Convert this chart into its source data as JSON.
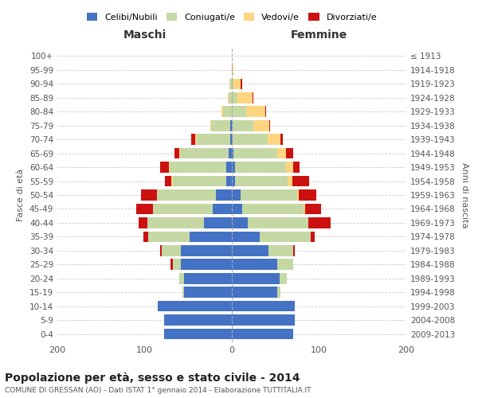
{
  "age_groups": [
    "0-4",
    "5-9",
    "10-14",
    "15-19",
    "20-24",
    "25-29",
    "30-34",
    "35-39",
    "40-44",
    "45-49",
    "50-54",
    "55-59",
    "60-64",
    "65-69",
    "70-74",
    "75-79",
    "80-84",
    "85-89",
    "90-94",
    "95-99",
    "100+"
  ],
  "birth_years": [
    "2009-2013",
    "2004-2008",
    "1999-2003",
    "1994-1998",
    "1989-1993",
    "1984-1988",
    "1979-1983",
    "1974-1978",
    "1969-1973",
    "1964-1968",
    "1959-1963",
    "1954-1958",
    "1949-1953",
    "1944-1948",
    "1939-1943",
    "1934-1938",
    "1929-1933",
    "1924-1928",
    "1919-1923",
    "1914-1918",
    "≤ 1913"
  ],
  "maschi": {
    "celibi": [
      78,
      78,
      85,
      55,
      55,
      58,
      58,
      48,
      32,
      22,
      18,
      6,
      6,
      4,
      2,
      2,
      0,
      0,
      0,
      0,
      0
    ],
    "coniugati": [
      0,
      0,
      0,
      2,
      5,
      10,
      22,
      48,
      65,
      68,
      68,
      62,
      65,
      55,
      38,
      22,
      10,
      4,
      2,
      0,
      0
    ],
    "vedovi": [
      0,
      0,
      0,
      0,
      0,
      0,
      0,
      0,
      0,
      0,
      0,
      1,
      1,
      1,
      2,
      1,
      2,
      1,
      1,
      0,
      0
    ],
    "divorziati": [
      0,
      0,
      0,
      0,
      0,
      2,
      2,
      5,
      10,
      20,
      18,
      8,
      10,
      6,
      5,
      0,
      0,
      0,
      0,
      0,
      0
    ]
  },
  "femmine": {
    "nubili": [
      70,
      72,
      72,
      52,
      55,
      52,
      42,
      32,
      18,
      12,
      10,
      4,
      4,
      2,
      1,
      1,
      0,
      0,
      0,
      0,
      0
    ],
    "coniugate": [
      0,
      0,
      0,
      4,
      8,
      18,
      28,
      58,
      70,
      70,
      65,
      60,
      58,
      50,
      40,
      24,
      16,
      6,
      2,
      1,
      0
    ],
    "vedove": [
      0,
      0,
      0,
      0,
      0,
      0,
      0,
      0,
      0,
      2,
      2,
      5,
      8,
      10,
      15,
      18,
      22,
      18,
      8,
      1,
      0
    ],
    "divorziate": [
      0,
      0,
      0,
      0,
      0,
      0,
      2,
      5,
      25,
      18,
      20,
      20,
      8,
      8,
      2,
      1,
      1,
      1,
      2,
      0,
      0
    ]
  },
  "colors": {
    "celibi": "#4472c4",
    "coniugati": "#c5d8a4",
    "vedovi": "#ffd580",
    "divorziati": "#cc1111"
  },
  "xlim": 200,
  "title": "Popolazione per età, sesso e stato civile - 2014",
  "subtitle": "COMUNE DI GRESSAN (AO) - Dati ISTAT 1° gennaio 2014 - Elaborazione TUTTITALIA.IT",
  "ylabel_left": "Fasce di età",
  "ylabel_right": "Anni di nascita",
  "xlabel_maschi": "Maschi",
  "xlabel_femmine": "Femmine"
}
